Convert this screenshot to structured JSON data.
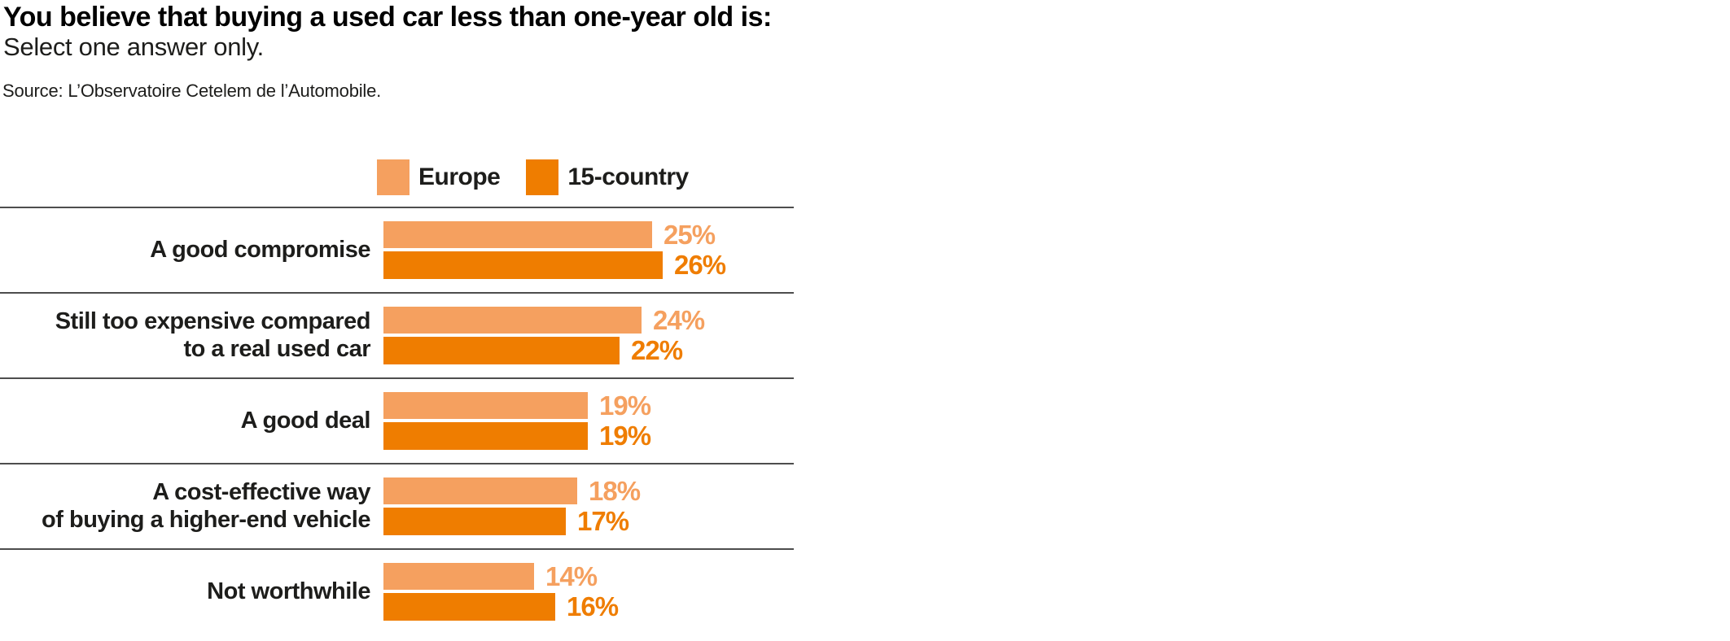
{
  "header": {
    "title": "You believe that buying a used car less than one-year old is:",
    "subtitle": "Select one answer only.",
    "source": "Source: L’Observatoire Cetelem de l’Automobile."
  },
  "colors": {
    "europe": "#F5A05F",
    "country15": "#EF7D00",
    "separator": "#4d4d4d",
    "text": "#1d1d1b"
  },
  "legend": {
    "items": [
      {
        "label": "Europe",
        "color": "#F5A05F"
      },
      {
        "label": "15-country",
        "color": "#EF7D00"
      }
    ]
  },
  "chart_data": {
    "type": "bar",
    "orientation": "horizontal",
    "unit": "percent",
    "title": "You believe that buying a used car less than one-year old is:",
    "xlabel": "",
    "ylabel": "",
    "xlim": [
      0,
      30
    ],
    "grid": false,
    "legend_position": "top",
    "categories": [
      "A good compromise",
      "Still too expensive compared to a real used car",
      "A good deal",
      "A cost-effective way of buying a higher-end vehicle",
      "Not worthwhile"
    ],
    "series": [
      {
        "name": "Europe",
        "color": "#F5A05F",
        "values": [
          25,
          24,
          19,
          18,
          14
        ]
      },
      {
        "name": "15-country",
        "color": "#EF7D00",
        "values": [
          26,
          22,
          19,
          17,
          16
        ]
      }
    ],
    "rows": [
      {
        "label": "A good compromise",
        "europe": 25,
        "europe_label": "25%",
        "country15": 26,
        "country15_label": "26%"
      },
      {
        "label": "Still too expensive compared\nto a real used car",
        "europe": 24,
        "europe_label": "24%",
        "country15": 22,
        "country15_label": "22%"
      },
      {
        "label": "A good deal",
        "europe": 19,
        "europe_label": "19%",
        "country15": 19,
        "country15_label": "19%"
      },
      {
        "label": "A cost-effective way\nof buying a higher-end vehicle",
        "europe": 18,
        "europe_label": "18%",
        "country15": 17,
        "country15_label": "17%"
      },
      {
        "label": "Not worthwhile",
        "europe": 14,
        "europe_label": "14%",
        "country15": 16,
        "country15_label": "16%"
      }
    ]
  }
}
